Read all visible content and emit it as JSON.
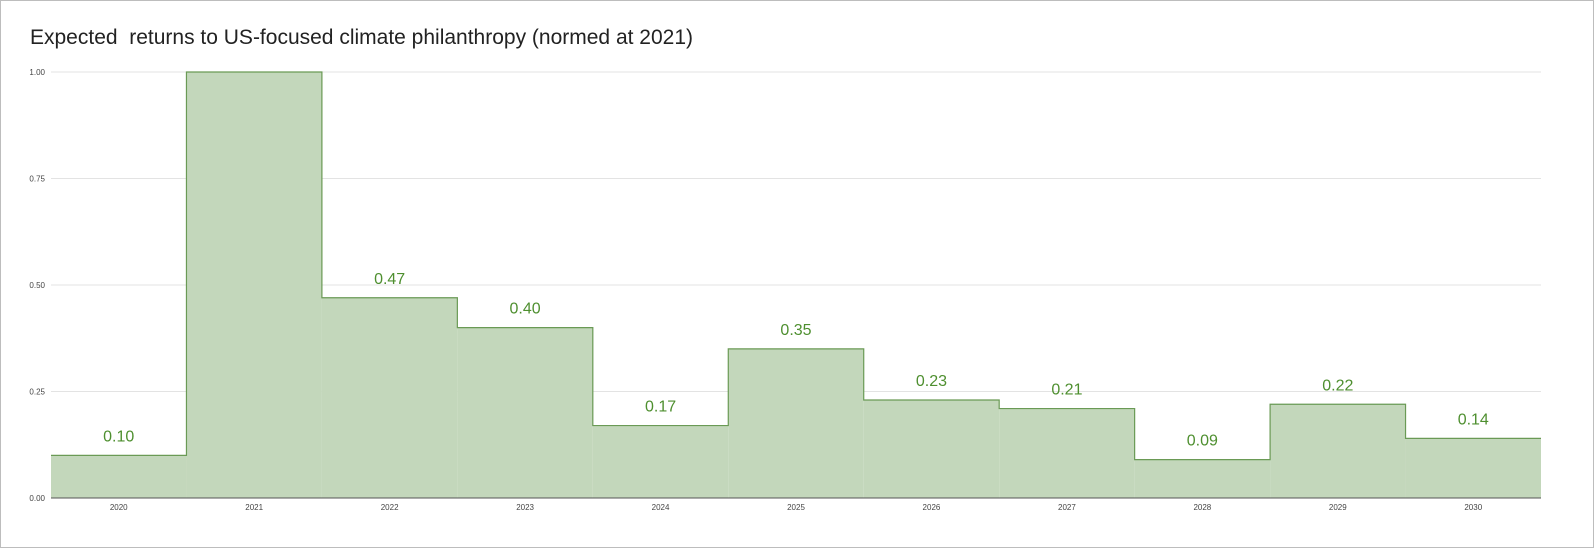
{
  "chart_data": {
    "type": "area",
    "step": true,
    "title": "Expected  returns to US-focused climate philanthropy (normed at 2021)",
    "xlabel": "",
    "ylabel": "",
    "categories": [
      "2020",
      "2021",
      "2022",
      "2023",
      "2024",
      "2025",
      "2026",
      "2027",
      "2028",
      "2029",
      "2030"
    ],
    "values": [
      0.1,
      1.0,
      0.47,
      0.4,
      0.17,
      0.35,
      0.23,
      0.21,
      0.09,
      0.22,
      0.14
    ],
    "data_labels": [
      "0.10",
      "",
      "0.47",
      "0.40",
      "0.17",
      "0.35",
      "0.23",
      "0.21",
      "0.09",
      "0.22",
      "0.14"
    ],
    "ylim": [
      0,
      1
    ],
    "yticks": [
      "0.00",
      "0.25",
      "0.50",
      "0.75",
      "1.00"
    ],
    "ytick_values": [
      0,
      0.25,
      0.5,
      0.75,
      1.0
    ],
    "grid": true,
    "legend": "none",
    "colors": {
      "fill": "#c3d7bb",
      "line": "#6a9a55",
      "label": "#4e8f2f",
      "grid": "#e3e3e3",
      "axis": "#444444"
    }
  }
}
